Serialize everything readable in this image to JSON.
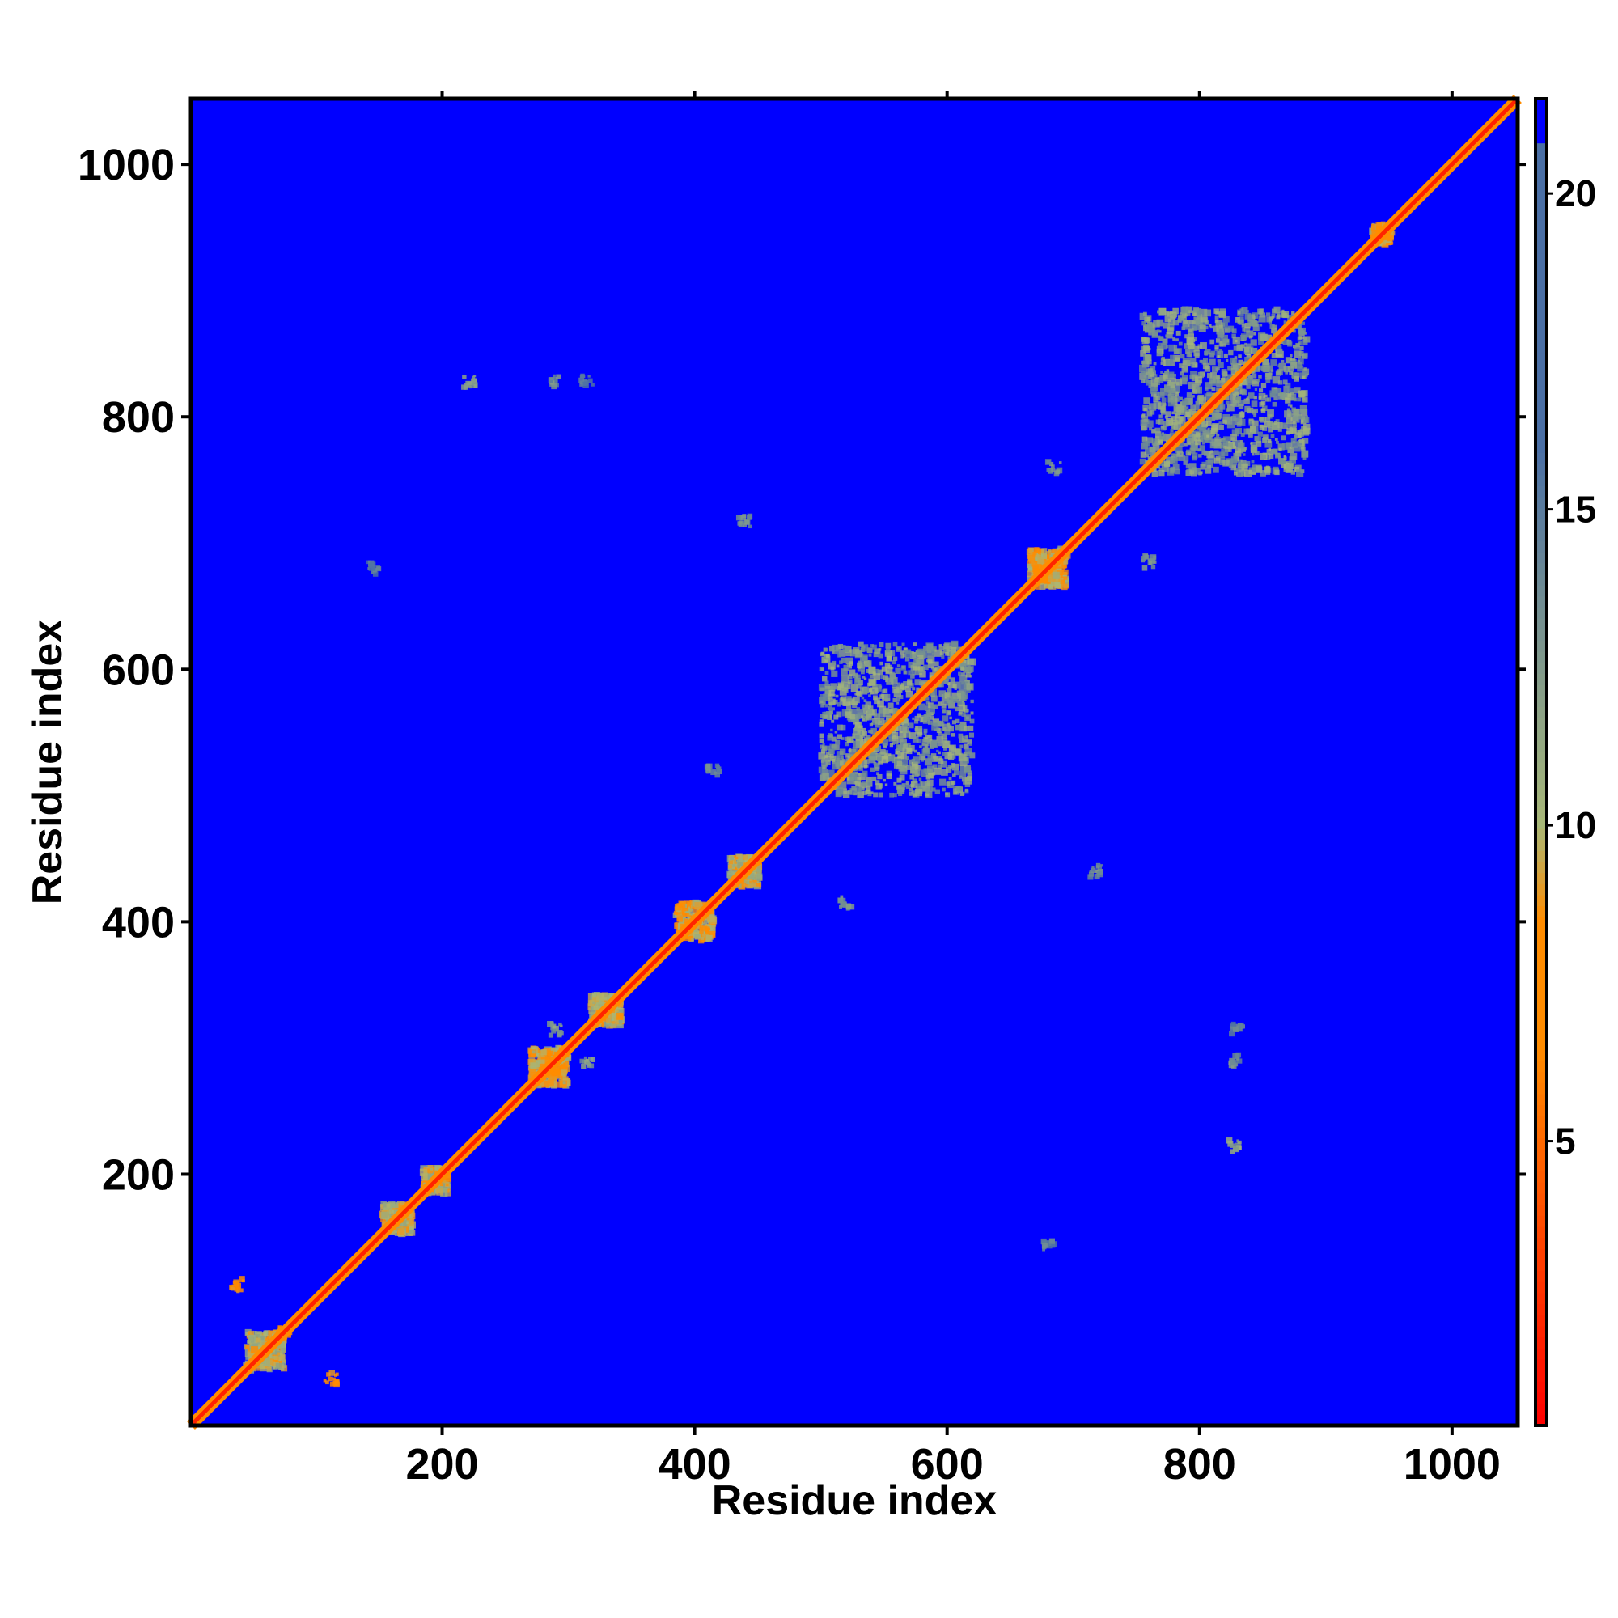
{
  "chart_data": {
    "type": "heatmap",
    "title": "",
    "xlabel": "Residue index",
    "ylabel": "Residue index",
    "xlim": [
      1,
      1052
    ],
    "ylim": [
      1,
      1052
    ],
    "xticks": [
      200,
      400,
      600,
      800,
      1000
    ],
    "yticks": [
      200,
      400,
      600,
      800,
      1000
    ],
    "colorbar": {
      "range": [
        0.5,
        21.5
      ],
      "ticks": [
        5,
        10,
        15,
        20
      ],
      "colors": {
        "low": "#ff0000",
        "mid_low": "#ff8c00",
        "mid": "#a8b878",
        "high": "#4a6fa5",
        "background": "#0000ff"
      }
    },
    "background_value": 21.5,
    "diagonal": {
      "from": 1,
      "to": 1052,
      "value": 2
    },
    "contact_domains": [
      {
        "center": [
          60,
          60
        ],
        "spread": 15,
        "value": 10
      },
      {
        "center": [
          165,
          165
        ],
        "spread": 12,
        "value": 10
      },
      {
        "center": [
          195,
          195
        ],
        "spread": 10,
        "value": 10
      },
      {
        "center": [
          285,
          285
        ],
        "spread": 15,
        "value": 9
      },
      {
        "center": [
          330,
          330
        ],
        "spread": 12,
        "value": 10
      },
      {
        "center": [
          400,
          400
        ],
        "spread": 15,
        "value": 9
      },
      {
        "center": [
          440,
          440
        ],
        "spread": 12,
        "value": 10
      },
      {
        "center": [
          560,
          560
        ],
        "spread": 60,
        "value": 12
      },
      {
        "center": [
          680,
          680
        ],
        "spread": 15,
        "value": 9
      },
      {
        "center": [
          820,
          820
        ],
        "spread": 65,
        "value": 12
      },
      {
        "center": [
          945,
          945
        ],
        "spread": 8,
        "value": 9
      }
    ],
    "off_diagonal_contacts": [
      {
        "x": 38,
        "y": 112,
        "value": 6
      },
      {
        "x": 112,
        "y": 38,
        "value": 6
      },
      {
        "x": 75,
        "y": 75,
        "value": 6
      },
      {
        "x": 222,
        "y": 828,
        "value": 10
      },
      {
        "x": 828,
        "y": 222,
        "value": 10
      },
      {
        "x": 290,
        "y": 828,
        "value": 12
      },
      {
        "x": 828,
        "y": 290,
        "value": 12
      },
      {
        "x": 315,
        "y": 290,
        "value": 11
      },
      {
        "x": 290,
        "y": 315,
        "value": 11
      },
      {
        "x": 760,
        "y": 685,
        "value": 12
      },
      {
        "x": 685,
        "y": 760,
        "value": 12
      },
      {
        "x": 440,
        "y": 718,
        "value": 12
      },
      {
        "x": 718,
        "y": 440,
        "value": 12
      },
      {
        "x": 520,
        "y": 415,
        "value": 12
      },
      {
        "x": 415,
        "y": 520,
        "value": 12
      },
      {
        "x": 830,
        "y": 315,
        "value": 13
      },
      {
        "x": 315,
        "y": 830,
        "value": 13
      },
      {
        "x": 680,
        "y": 145,
        "value": 13
      },
      {
        "x": 145,
        "y": 680,
        "value": 13
      }
    ]
  }
}
